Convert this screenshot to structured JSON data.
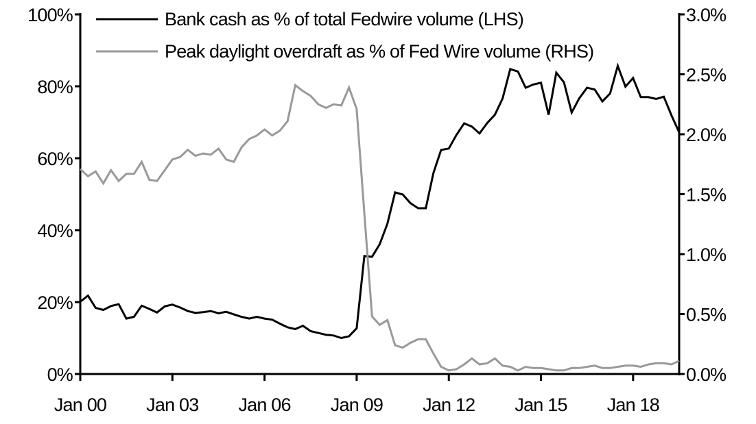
{
  "chart_data": {
    "type": "line",
    "title": "",
    "xlabel": "",
    "ylabel_left": "",
    "ylabel_right": "",
    "x_tick_labels": [
      "Jan 00",
      "Jan 03",
      "Jan 06",
      "Jan 09",
      "Jan 12",
      "Jan 15",
      "Jan 18"
    ],
    "x_tick_dates": [
      "2000Q1",
      "2003Q1",
      "2006Q1",
      "2009Q1",
      "2012Q1",
      "2015Q1",
      "2018Q1"
    ],
    "y_left_ticks": [
      "0%",
      "20%",
      "40%",
      "60%",
      "80%",
      "100%"
    ],
    "y_left_range": [
      0,
      100
    ],
    "y_right_ticks": [
      "0.0%",
      "0.5%",
      "1.0%",
      "1.5%",
      "2.0%",
      "2.5%",
      "3.0%"
    ],
    "y_right_range": [
      0,
      3
    ],
    "grid": false,
    "legend_position": "top",
    "x": [
      "2000Q1",
      "2000Q2",
      "2000Q3",
      "2000Q4",
      "2001Q1",
      "2001Q2",
      "2001Q3",
      "2001Q4",
      "2002Q1",
      "2002Q2",
      "2002Q3",
      "2002Q4",
      "2003Q1",
      "2003Q2",
      "2003Q3",
      "2003Q4",
      "2004Q1",
      "2004Q2",
      "2004Q3",
      "2004Q4",
      "2005Q1",
      "2005Q2",
      "2005Q3",
      "2005Q4",
      "2006Q1",
      "2006Q2",
      "2006Q3",
      "2006Q4",
      "2007Q1",
      "2007Q2",
      "2007Q3",
      "2007Q4",
      "2008Q1",
      "2008Q2",
      "2008Q3",
      "2008Q4",
      "2009Q1",
      "2009Q2",
      "2009Q3",
      "2009Q4",
      "2010Q1",
      "2010Q2",
      "2010Q3",
      "2010Q4",
      "2011Q1",
      "2011Q2",
      "2011Q3",
      "2011Q4",
      "2012Q1",
      "2012Q2",
      "2012Q3",
      "2012Q4",
      "2013Q1",
      "2013Q2",
      "2013Q3",
      "2013Q4",
      "2014Q1",
      "2014Q2",
      "2014Q3",
      "2014Q4",
      "2015Q1",
      "2015Q2",
      "2015Q3",
      "2015Q4",
      "2016Q1",
      "2016Q2",
      "2016Q3",
      "2016Q4",
      "2017Q1",
      "2017Q2",
      "2017Q3",
      "2017Q4",
      "2018Q1",
      "2018Q2",
      "2018Q3",
      "2018Q4",
      "2019Q1",
      "2019Q2",
      "2019Q3"
    ],
    "series": [
      {
        "name": "Bank cash as % of total Fedwire volume (LHS)",
        "axis": "left",
        "color": "#000000",
        "values": [
          20.1,
          21.8,
          18.4,
          17.8,
          18.9,
          19.4,
          15.4,
          15.9,
          19.0,
          18.1,
          17.1,
          18.8,
          19.3,
          18.5,
          17.5,
          17.0,
          17.2,
          17.5,
          16.9,
          17.3,
          16.6,
          15.9,
          15.4,
          15.9,
          15.4,
          15.1,
          14.0,
          13.0,
          12.5,
          13.4,
          11.9,
          11.4,
          10.9,
          10.7,
          10.0,
          10.5,
          12.7,
          32.8,
          32.6,
          36.1,
          41.8,
          50.5,
          49.9,
          47.5,
          46.1,
          46.1,
          55.9,
          62.3,
          62.7,
          66.5,
          69.7,
          68.8,
          66.9,
          69.8,
          72.1,
          76.6,
          84.8,
          84.1,
          79.6,
          80.5,
          81.0,
          72.1,
          83.8,
          81.1,
          72.7,
          76.7,
          79.6,
          79.1,
          75.8,
          78.0,
          85.7,
          79.9,
          82.3,
          77.0,
          77.0,
          76.5,
          77.1,
          71.9,
          67.2
        ]
      },
      {
        "name": "Peak daylight overdraft as % of Fed Wire volume (RHS)",
        "axis": "right",
        "color": "#999999",
        "values": [
          1.71,
          1.65,
          1.69,
          1.59,
          1.7,
          1.61,
          1.67,
          1.67,
          1.77,
          1.62,
          1.61,
          1.7,
          1.79,
          1.81,
          1.87,
          1.82,
          1.84,
          1.83,
          1.88,
          1.79,
          1.77,
          1.89,
          1.96,
          1.99,
          2.04,
          1.99,
          2.03,
          2.11,
          2.41,
          2.36,
          2.32,
          2.25,
          2.22,
          2.25,
          2.24,
          2.39,
          2.21,
          1.34,
          0.48,
          0.41,
          0.45,
          0.24,
          0.22,
          0.26,
          0.29,
          0.29,
          0.17,
          0.06,
          0.03,
          0.04,
          0.08,
          0.13,
          0.08,
          0.09,
          0.13,
          0.07,
          0.06,
          0.03,
          0.06,
          0.05,
          0.05,
          0.04,
          0.03,
          0.03,
          0.05,
          0.05,
          0.06,
          0.07,
          0.05,
          0.05,
          0.06,
          0.07,
          0.07,
          0.06,
          0.08,
          0.09,
          0.09,
          0.08,
          0.11
        ]
      }
    ]
  }
}
